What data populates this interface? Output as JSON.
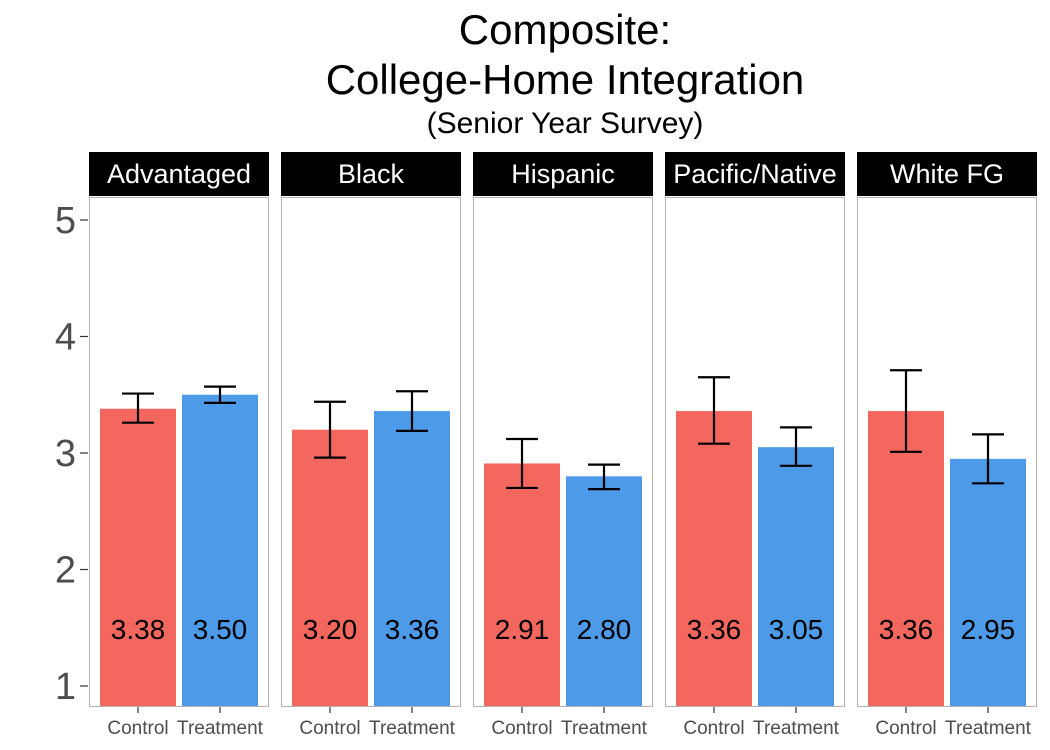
{
  "chart_data": {
    "type": "bar",
    "title": [
      "Composite:",
      "College-Home Integration"
    ],
    "subtitle": "(Senior Year Survey)",
    "xlabel": "",
    "ylabel": "",
    "ylim": [
      1,
      5
    ],
    "yticks": [
      1,
      2,
      3,
      4,
      5
    ],
    "categories": [
      "Control",
      "Treatment"
    ],
    "colors": {
      "Control": "#F4675E",
      "Treatment": "#4D9AE8"
    },
    "legend": "none",
    "grid": false,
    "facets": [
      {
        "label": "Advantaged",
        "values": [
          3.38,
          3.5
        ],
        "value_labels": [
          "3.38",
          "3.50"
        ],
        "error": [
          [
            3.26,
            3.51
          ],
          [
            3.43,
            3.57
          ]
        ]
      },
      {
        "label": "Black",
        "values": [
          3.2,
          3.36
        ],
        "value_labels": [
          "3.20",
          "3.36"
        ],
        "error": [
          [
            2.96,
            3.44
          ],
          [
            3.19,
            3.53
          ]
        ]
      },
      {
        "label": "Hispanic",
        "values": [
          2.91,
          2.8
        ],
        "value_labels": [
          "2.91",
          "2.80"
        ],
        "error": [
          [
            2.7,
            3.12
          ],
          [
            2.69,
            2.9
          ]
        ]
      },
      {
        "label": "Pacific/Native",
        "values": [
          3.36,
          3.05
        ],
        "value_labels": [
          "3.36",
          "3.05"
        ],
        "error": [
          [
            3.08,
            3.65
          ],
          [
            2.89,
            3.22
          ]
        ]
      },
      {
        "label": "White FG",
        "values": [
          3.36,
          2.95
        ],
        "value_labels": [
          "3.36",
          "2.95"
        ],
        "error": [
          [
            3.01,
            3.71
          ],
          [
            2.74,
            3.16
          ]
        ]
      }
    ]
  }
}
